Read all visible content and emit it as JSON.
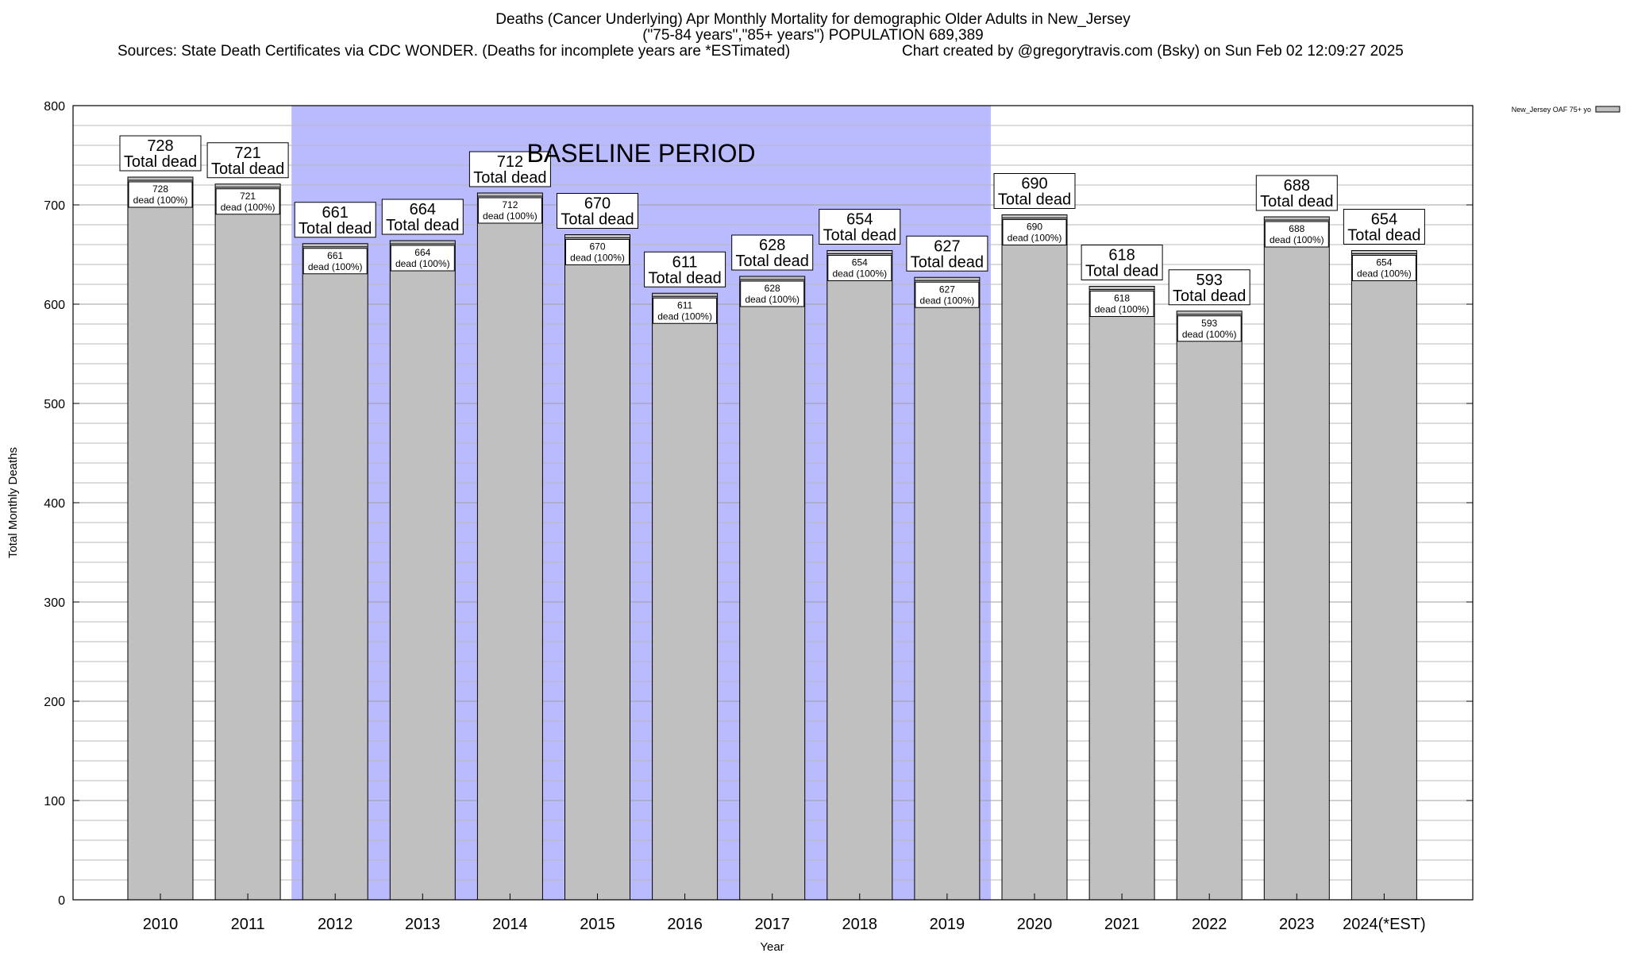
{
  "header": {
    "title": "Deaths (Cancer Underlying) Apr Monthly Mortality for demographic Older Adults in New_Jersey",
    "subtitle": "(\"75-84 years\",\"85+ years\") POPULATION 689,389",
    "sources": "Sources: State Death Certificates via CDC WONDER. (Deaths for incomplete years are *ESTimated)",
    "credit": "Chart created by @gregorytravis.com (Bsky) on Sun Feb 02 12:09:27 2025"
  },
  "chart_data": {
    "type": "bar",
    "categories": [
      "2010",
      "2011",
      "2012",
      "2013",
      "2014",
      "2015",
      "2016",
      "2017",
      "2018",
      "2019",
      "2020",
      "2021",
      "2022",
      "2023",
      "2024(*EST)"
    ],
    "series": [
      {
        "name": "New_Jersey OAF 75+ yo",
        "values": [
          728,
          721,
          661,
          664,
          712,
          670,
          611,
          628,
          654,
          627,
          690,
          618,
          593,
          688,
          654
        ]
      }
    ],
    "outer_label_suffix": "Total dead",
    "inner_label_suffix": "dead (100%)",
    "xlabel": "Year",
    "ylabel": "Total Monthly Deaths",
    "ylim": [
      0,
      800
    ],
    "yticks": [
      0,
      100,
      200,
      300,
      400,
      500,
      600,
      700,
      800
    ],
    "minor_grid_step": 20,
    "grid": true,
    "legend_position": "top-right",
    "baseline_period": {
      "label": "BASELINE PERIOD",
      "start_category": "2012",
      "end_category": "2019",
      "color": "#babaff"
    },
    "bar_color": "#c0c0c0"
  }
}
